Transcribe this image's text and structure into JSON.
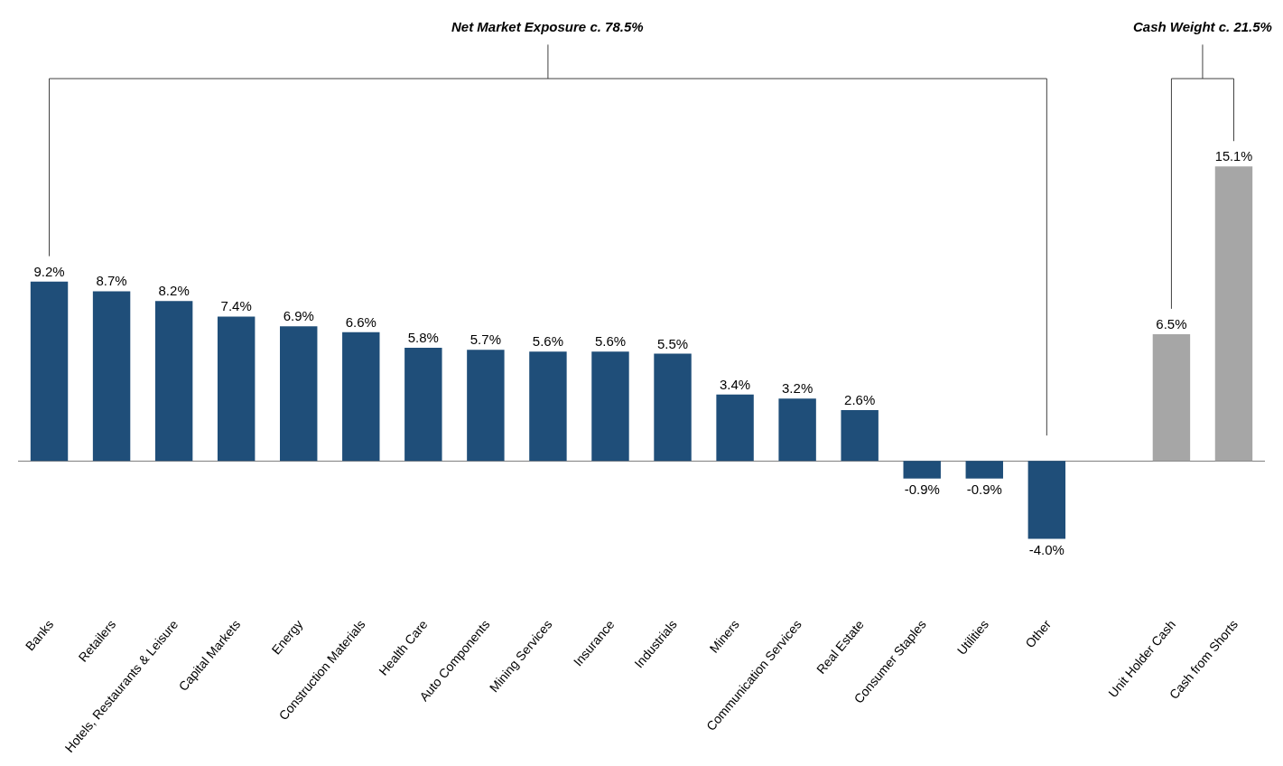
{
  "chart_data": {
    "type": "bar",
    "categories": [
      "Banks",
      "Retailers",
      "Hotels, Restaurants & Leisure",
      "Capital Markets",
      "Energy",
      "Construction Materials",
      "Health Care",
      "Auto Components",
      "Mining Services",
      "Insurance",
      "Industrials",
      "Miners",
      "Communication Services",
      "Real Estate",
      "Consumer Staples",
      "Utilities",
      "Other",
      null,
      "Unit Holder Cash",
      "Cash from Shorts"
    ],
    "values": [
      9.2,
      8.7,
      8.2,
      7.4,
      6.9,
      6.6,
      5.8,
      5.7,
      5.6,
      5.6,
      5.5,
      3.4,
      3.2,
      2.6,
      -0.9,
      -0.9,
      -4.0,
      null,
      6.5,
      15.1
    ],
    "colors": [
      "#1f4e79",
      "#1f4e79",
      "#1f4e79",
      "#1f4e79",
      "#1f4e79",
      "#1f4e79",
      "#1f4e79",
      "#1f4e79",
      "#1f4e79",
      "#1f4e79",
      "#1f4e79",
      "#1f4e79",
      "#1f4e79",
      "#1f4e79",
      "#1f4e79",
      "#1f4e79",
      "#1f4e79",
      "#1f4e79",
      "#a6a6a6",
      "#a6a6a6"
    ],
    "value_labels": [
      "9.2%",
      "8.7%",
      "8.2%",
      "7.4%",
      "6.9%",
      "6.6%",
      "5.8%",
      "5.7%",
      "5.6%",
      "5.6%",
      "5.5%",
      "3.4%",
      "3.2%",
      "2.6%",
      "-0.9%",
      "-0.9%",
      "-4.0%",
      null,
      "6.5%",
      "15.1%"
    ],
    "tick_labels": "x",
    "annotations": [
      "Net Market Exposure c. 78.5%",
      "Cash Weight c. 21.5%"
    ]
  }
}
